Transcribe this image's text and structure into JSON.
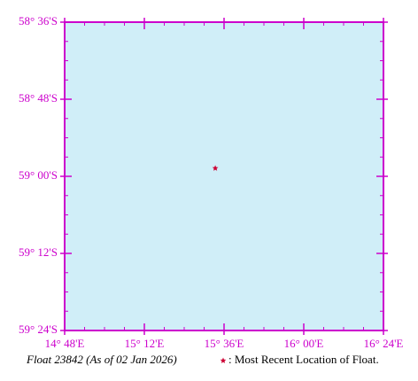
{
  "chart_data": {
    "type": "scatter",
    "caption": "Float 23842 (As of 02 Jan 2026)",
    "background": "#d0eef8",
    "axis_color": "#cc00cc",
    "xlim": [
      14.8,
      16.4
    ],
    "xticks": [
      {
        "value": 14.8,
        "label": "14° 48'E"
      },
      {
        "value": 15.2,
        "label": "15° 12'E"
      },
      {
        "value": 15.6,
        "label": "15° 36'E"
      },
      {
        "value": 16.0,
        "label": "16° 00'E"
      },
      {
        "value": 16.4,
        "label": "16° 24'E"
      }
    ],
    "ylim": [
      -59.4,
      -58.6
    ],
    "yticks": [
      {
        "value": -58.6,
        "label": "58° 36'S"
      },
      {
        "value": -58.8,
        "label": "58° 48'S"
      },
      {
        "value": -59.0,
        "label": "59° 00'S"
      },
      {
        "value": -59.2,
        "label": "59° 12'S"
      },
      {
        "value": -59.4,
        "label": "59° 24'S"
      }
    ],
    "series": [
      {
        "name": ": Most Recent Location of Float.",
        "color": "#cc0033",
        "x": [
          15.556
        ],
        "values": [
          -58.979
        ]
      }
    ]
  }
}
